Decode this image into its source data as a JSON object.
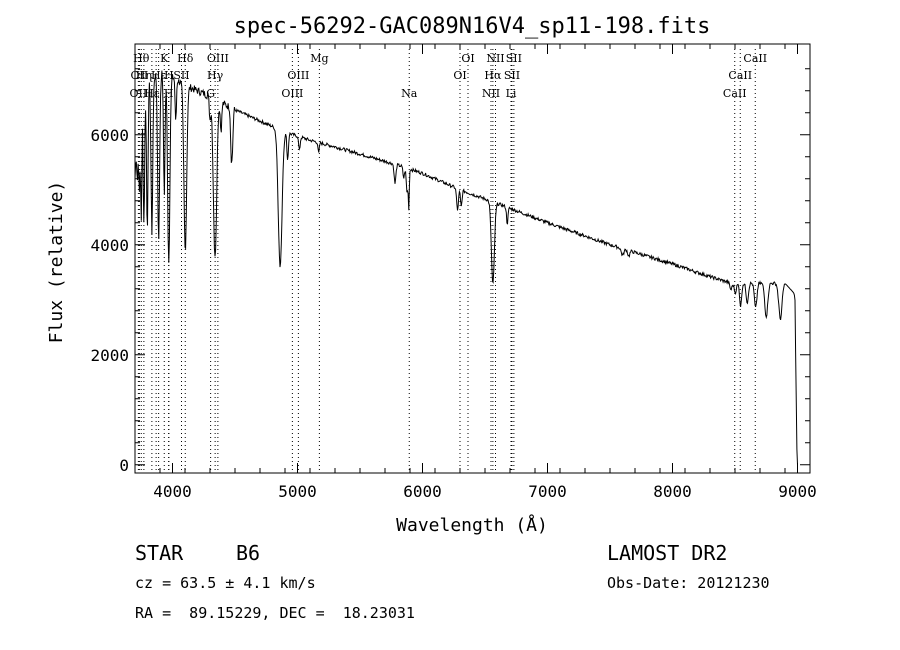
{
  "chart_data": {
    "type": "line",
    "title": "spec-56292-GAC089N16V4_sp11-198.fits",
    "xlabel": "Wavelength (Å)",
    "ylabel": "Flux (relative)",
    "xlim": [
      3700,
      9100
    ],
    "ylim": [
      -150,
      7650
    ],
    "x_ticks": [
      4000,
      5000,
      6000,
      7000,
      8000,
      9000
    ],
    "y_ticks": [
      0,
      2000,
      4000,
      6000
    ],
    "grid": false,
    "continuum": [
      [
        3700,
        5200
      ],
      [
        3720,
        6200
      ],
      [
        3760,
        6850
      ],
      [
        3800,
        6950
      ],
      [
        3900,
        7150
      ],
      [
        4000,
        7050
      ],
      [
        4100,
        6900
      ],
      [
        4200,
        6800
      ],
      [
        4300,
        6700
      ],
      [
        4500,
        6450
      ],
      [
        4700,
        6250
      ],
      [
        4900,
        6050
      ],
      [
        5100,
        5900
      ],
      [
        5300,
        5780
      ],
      [
        5500,
        5650
      ],
      [
        5800,
        5450
      ],
      [
        6000,
        5300
      ],
      [
        6300,
        5000
      ],
      [
        6600,
        4750
      ],
      [
        7000,
        4400
      ],
      [
        7500,
        4000
      ],
      [
        8000,
        3650
      ],
      [
        8300,
        3420
      ],
      [
        8500,
        3280
      ],
      [
        8600,
        3300
      ],
      [
        8900,
        3300
      ],
      [
        8980,
        3100
      ],
      [
        9000,
        0
      ]
    ],
    "absorption_lines": [
      {
        "x": 3720,
        "depth": 1000,
        "w": 5
      },
      {
        "x": 3735,
        "depth": 1500,
        "w": 5
      },
      {
        "x": 3750,
        "depth": 2200,
        "w": 5
      },
      {
        "x": 3771,
        "depth": 2500,
        "w": 6
      },
      {
        "x": 3798,
        "depth": 2700,
        "w": 6
      },
      {
        "x": 3835,
        "depth": 2800,
        "w": 7
      },
      {
        "x": 3889,
        "depth": 3000,
        "w": 8
      },
      {
        "x": 3934,
        "depth": 2200,
        "w": 6
      },
      {
        "x": 3970,
        "depth": 3400,
        "w": 9
      },
      {
        "x": 4026,
        "depth": 800,
        "w": 5
      },
      {
        "x": 4102,
        "depth": 3000,
        "w": 11
      },
      {
        "x": 4300,
        "depth": 400,
        "w": 6
      },
      {
        "x": 4340,
        "depth": 2900,
        "w": 13
      },
      {
        "x": 4388,
        "depth": 500,
        "w": 6
      },
      {
        "x": 4471,
        "depth": 900,
        "w": 6
      },
      {
        "x": 4481,
        "depth": 500,
        "w": 5
      },
      {
        "x": 4861,
        "depth": 2500,
        "w": 15
      },
      {
        "x": 4921,
        "depth": 500,
        "w": 6
      },
      {
        "x": 5015,
        "depth": 250,
        "w": 6
      },
      {
        "x": 5169,
        "depth": 200,
        "w": 5
      },
      {
        "x": 5780,
        "depth": 350,
        "w": 7
      },
      {
        "x": 5850,
        "depth": 200,
        "w": 6
      },
      {
        "x": 5876,
        "depth": 450,
        "w": 6
      },
      {
        "x": 5890,
        "depth": 700,
        "w": 4
      },
      {
        "x": 6280,
        "depth": 400,
        "w": 7
      },
      {
        "x": 6310,
        "depth": 300,
        "w": 6
      },
      {
        "x": 6563,
        "depth": 1500,
        "w": 12
      },
      {
        "x": 6678,
        "depth": 300,
        "w": 6
      },
      {
        "x": 7600,
        "depth": 120,
        "w": 10
      },
      {
        "x": 7650,
        "depth": 100,
        "w": 8
      },
      {
        "x": 8467,
        "depth": 120,
        "w": 8
      },
      {
        "x": 8502,
        "depth": 150,
        "w": 8
      },
      {
        "x": 8545,
        "depth": 400,
        "w": 8
      },
      {
        "x": 8598,
        "depth": 350,
        "w": 9
      },
      {
        "x": 8665,
        "depth": 450,
        "w": 10
      },
      {
        "x": 8750,
        "depth": 600,
        "w": 12
      },
      {
        "x": 8863,
        "depth": 650,
        "w": 13
      },
      {
        "x": 8994,
        "depth": 500,
        "w": 8
      }
    ],
    "line_markers": [
      {
        "x": 3727,
        "label": "OII",
        "row": 2
      },
      {
        "x": 3735,
        "label": "OII",
        "row": 1
      },
      {
        "x": 3750,
        "label": "Hθ",
        "row": 0
      },
      {
        "x": 3771,
        "label": "Hη",
        "row": 1
      },
      {
        "x": 3835,
        "label": "Hε",
        "row": 2
      },
      {
        "x": 3869,
        "label": "",
        "row": 2
      },
      {
        "x": 3889,
        "label": "Hε",
        "row": 1
      },
      {
        "x": 3934,
        "label": "K",
        "row": 0
      },
      {
        "x": 3969,
        "label": "H",
        "row": 2
      },
      {
        "x": 3971,
        "label": "H",
        "row": 1
      },
      {
        "x": 4072,
        "label": "SII",
        "row": 1
      },
      {
        "x": 4102,
        "label": "Hδ",
        "row": 0
      },
      {
        "x": 4305,
        "label": "G",
        "row": 2
      },
      {
        "x": 4341,
        "label": "Hγ",
        "row": 1
      },
      {
        "x": 4363,
        "label": "OIII",
        "row": 0
      },
      {
        "x": 4959,
        "label": "OIII",
        "row": 2
      },
      {
        "x": 5007,
        "label": "OIII",
        "row": 1
      },
      {
        "x": 5175,
        "label": "Mg",
        "row": 0
      },
      {
        "x": 5894,
        "label": "Na",
        "row": 2
      },
      {
        "x": 6300,
        "label": "OI",
        "row": 1
      },
      {
        "x": 6364,
        "label": "OI",
        "row": 0
      },
      {
        "x": 6548,
        "label": "NII",
        "row": 2
      },
      {
        "x": 6563,
        "label": "Hα",
        "row": 1
      },
      {
        "x": 6584,
        "label": "NII",
        "row": 0
      },
      {
        "x": 6708,
        "label": "Li",
        "row": 2
      },
      {
        "x": 6716,
        "label": "SII",
        "row": 1
      },
      {
        "x": 6731,
        "label": "SII",
        "row": 0
      },
      {
        "x": 8498,
        "label": "CaII",
        "row": 2
      },
      {
        "x": 8542,
        "label": "CaII",
        "row": 1
      },
      {
        "x": 8662,
        "label": "CaII",
        "row": 0
      }
    ]
  },
  "footer": {
    "object_type": "STAR",
    "subclass": "B6",
    "survey": "LAMOST DR2",
    "redshift": "cz = 63.5 ± 4.1 km/s",
    "obs_date": "Obs-Date: 20121230",
    "coords": "RA =  89.15229, DEC =  18.23031"
  }
}
